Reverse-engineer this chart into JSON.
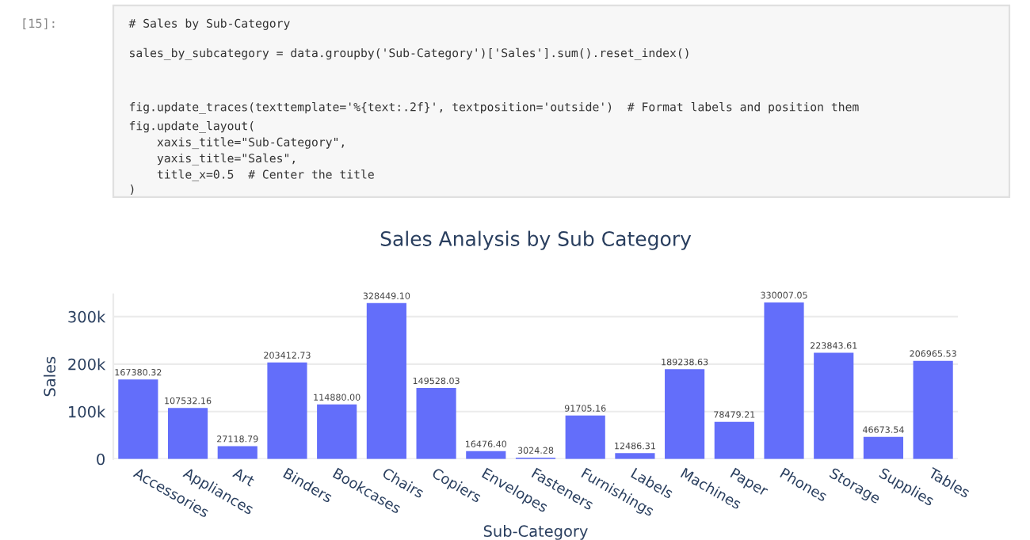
{
  "chart_data": {
    "type": "bar",
    "title": "Sales Analysis by Sub Category",
    "xlabel": "Sub-Category",
    "ylabel": "Sales",
    "annotations": [
      "[15]:",
      "# Sales by Sub-Category",
      "sales_by_subcategory = data.groupby('Sub-Category')['Sales'].sum().reset_index()",
      "fig.update_traces(texttemplate='%{text:.2f}', textposition='outside')  # Format labels and position them",
      "fig.update_layout(",
      "    xaxis_title=\"Sub-Category\",",
      "    yaxis_title=\"Sales\",",
      "    title_x=0.5  # Center the title",
      ")"
    ],
    "categories": [
      "Accessories",
      "Appliances",
      "Art",
      "Binders",
      "Bookcases",
      "Chairs",
      "Copiers",
      "Envelopes",
      "Fasteners",
      "Furnishings",
      "Labels",
      "Machines",
      "Paper",
      "Phones",
      "Storage",
      "Supplies",
      "Tables"
    ],
    "values": [
      167380.32,
      107532.16,
      27118.79,
      203412.73,
      114880.0,
      328449.1,
      149528.03,
      16476.4,
      3024.28,
      91705.16,
      12486.31,
      189238.63,
      78479.21,
      330007.05,
      223843.61,
      46673.54,
      206965.53
    ],
    "value_labels": [
      "167380.32",
      "107532.16",
      "27118.79",
      "203412.73",
      "114880.00",
      "328449.10",
      "149528.03",
      "16476.40",
      "3024.28",
      "91705.16",
      "12486.31",
      "189238.63",
      "78479.21",
      "330007.05",
      "223843.61",
      "46673.54",
      "206965.53"
    ],
    "color": "#636efa",
    "ylim": [
      0,
      347000
    ],
    "yticks": [
      {
        "value": 0,
        "label": "0"
      },
      {
        "value": 100000,
        "label": "100k"
      },
      {
        "value": 200000,
        "label": "200k"
      },
      {
        "value": 300000,
        "label": "300k"
      }
    ],
    "grid": "y",
    "legend": false
  }
}
